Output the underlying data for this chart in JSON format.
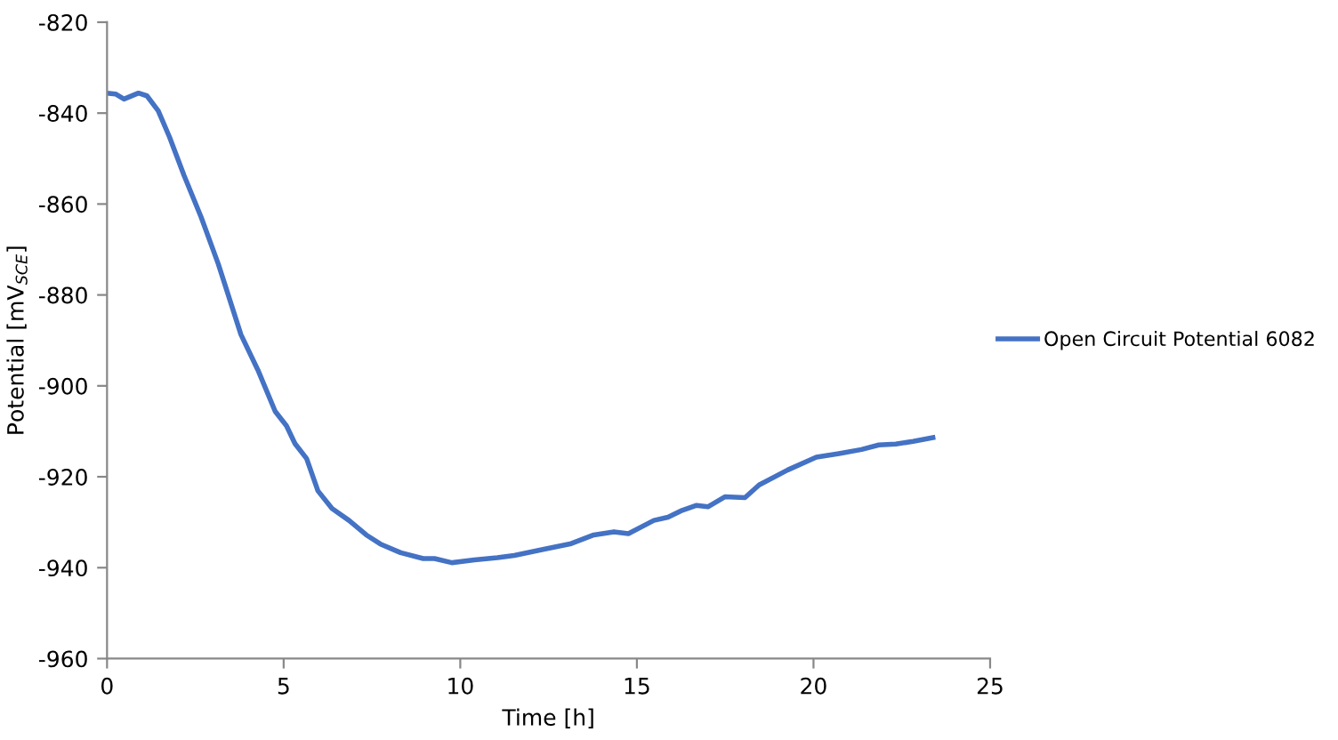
{
  "chart_data": {
    "type": "line",
    "xlabel": "Time [h]",
    "ylabel": "Potential [mV$_{SCE}$]",
    "xlim": [
      0,
      25
    ],
    "xticks": [
      0,
      5,
      10,
      15,
      20,
      25
    ],
    "ylim": [
      -960,
      -820
    ],
    "yticks": [
      -960,
      -940,
      -920,
      -900,
      -880,
      -860,
      -840,
      -820
    ],
    "grid": false,
    "legend": "right",
    "marker": "none",
    "line_style": "solid",
    "series": [
      {
        "name": "Open Circuit Potential 6082",
        "color": "#4472c4",
        "x": [
          0,
          0.24,
          0.48,
          0.89,
          1.13,
          1.45,
          1.77,
          2.18,
          2.66,
          3.15,
          3.79,
          4.27,
          4.76,
          5.08,
          5.32,
          5.65,
          5.97,
          6.37,
          6.85,
          7.34,
          7.74,
          8.31,
          8.95,
          9.27,
          9.76,
          10.4,
          11.05,
          11.53,
          12.34,
          13.14,
          13.78,
          14.35,
          14.76,
          15.48,
          15.88,
          16.28,
          16.69,
          17.01,
          17.49,
          18.06,
          18.46,
          19.27,
          20.08,
          20.72,
          21.36,
          21.85,
          22.33,
          22.82,
          23.38
        ],
        "values": [
          -835.6,
          -835.8,
          -836.9,
          -835.6,
          -836.2,
          -839.5,
          -845.3,
          -853.7,
          -862.8,
          -873.2,
          -888.7,
          -896.5,
          -905.6,
          -908.8,
          -912.7,
          -916.0,
          -923.1,
          -927.0,
          -929.6,
          -932.8,
          -934.8,
          -936.7,
          -938.0,
          -938.0,
          -938.9,
          -938.3,
          -937.8,
          -937.3,
          -936.0,
          -934.7,
          -932.8,
          -932.1,
          -932.5,
          -929.6,
          -928.9,
          -927.4,
          -926.3,
          -926.6,
          -924.4,
          -924.6,
          -921.8,
          -918.5,
          -915.7,
          -914.9,
          -914.0,
          -913.0,
          -912.8,
          -912.2,
          -911.4
        ]
      }
    ]
  }
}
